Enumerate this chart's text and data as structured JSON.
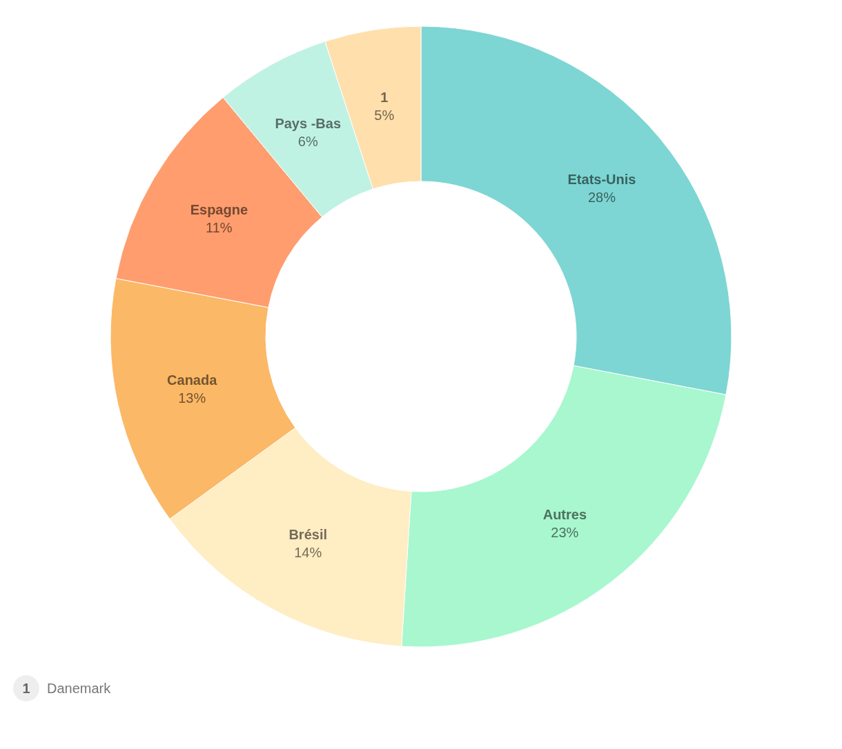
{
  "chart_data": {
    "type": "donut",
    "categories": [
      "Etats-Unis",
      "Autres",
      "Brésil",
      "Canada",
      "Espagne",
      "Pays -Bas",
      "1"
    ],
    "values": [
      28,
      23,
      14,
      13,
      11,
      6,
      5
    ],
    "colors": [
      "#7dd6d3",
      "#a8f7cf",
      "#ffedc3",
      "#fbb866",
      "#ff9d6e",
      "#c0f2e3",
      "#ffdfac"
    ],
    "value_labels": [
      "28%",
      "23%",
      "14%",
      "13%",
      "11%",
      "6%",
      "5%"
    ],
    "annotations": [
      "Danemark"
    ]
  }
}
